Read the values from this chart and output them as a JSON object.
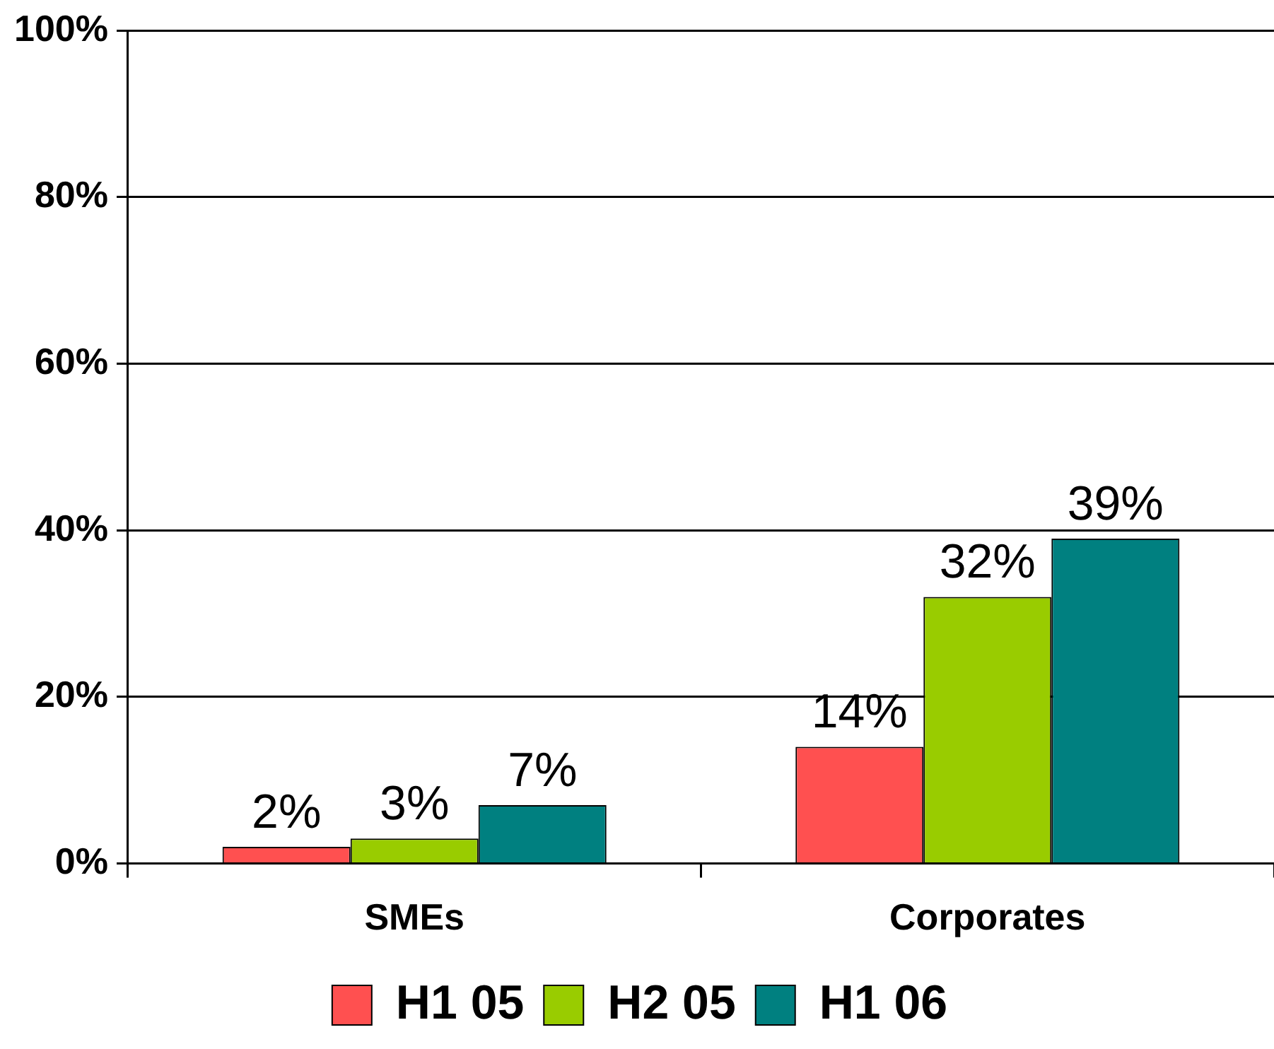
{
  "chart_data": {
    "type": "bar",
    "categories": [
      "SMEs",
      "Corporates"
    ],
    "series": [
      {
        "name": "H1 05",
        "color": "#ff5050",
        "values": [
          2,
          14
        ],
        "value_labels": [
          "2%",
          "14%"
        ]
      },
      {
        "name": "H2 05",
        "color": "#99cc00",
        "values": [
          3,
          32
        ],
        "value_labels": [
          "3%",
          "32%"
        ]
      },
      {
        "name": "H1 06",
        "color": "#008080",
        "values": [
          7,
          39
        ],
        "value_labels": [
          "7%",
          "39%"
        ]
      }
    ],
    "ylim": [
      0,
      100
    ],
    "yticks": [
      {
        "value": 0,
        "label": "0%"
      },
      {
        "value": 20,
        "label": "20%"
      },
      {
        "value": 40,
        "label": "40%"
      },
      {
        "value": 60,
        "label": "60%"
      },
      {
        "value": 80,
        "label": "80%"
      },
      {
        "value": 100,
        "label": "100%"
      }
    ],
    "grid": "y",
    "legend": "bottom"
  }
}
